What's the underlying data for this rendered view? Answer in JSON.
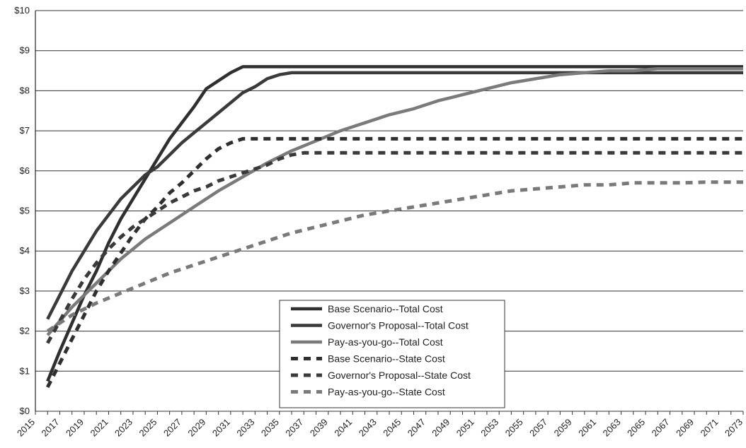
{
  "chart_data": {
    "type": "line",
    "title": "",
    "xlabel": "",
    "ylabel": "",
    "ylim": [
      0,
      10
    ],
    "xlim": [
      2015,
      2073
    ],
    "y_ticks": [
      0,
      1,
      2,
      3,
      4,
      5,
      6,
      7,
      8,
      9,
      10
    ],
    "y_tick_labels": [
      "$0",
      "$1",
      "$2",
      "$3",
      "$4",
      "$5",
      "$6",
      "$7",
      "$8",
      "$9",
      "$10"
    ],
    "x_ticks": [
      2015,
      2017,
      2019,
      2021,
      2023,
      2025,
      2027,
      2029,
      2031,
      2033,
      2035,
      2037,
      2039,
      2041,
      2043,
      2045,
      2047,
      2049,
      2051,
      2053,
      2055,
      2057,
      2059,
      2061,
      2063,
      2065,
      2067,
      2069,
      2071,
      2073
    ],
    "x_tick_labels": [
      "2015",
      "2017",
      "2019",
      "2021",
      "2023",
      "2025",
      "2027",
      "2029",
      "2031",
      "2033",
      "2035",
      "2037",
      "2039",
      "2041",
      "2043",
      "2045",
      "2047",
      "2049",
      "2051",
      "2053",
      "2055",
      "2057",
      "2059",
      "2061",
      "2063",
      "2065",
      "2067",
      "2069",
      "2071",
      "2073"
    ],
    "grid": "horizontal",
    "legend_position": "bottom-center",
    "series": [
      {
        "name": "Base Scenario--Total Cost",
        "style": "solid",
        "color": "#2f2f2f",
        "x": [
          2016,
          2017,
          2018,
          2019,
          2020,
          2021,
          2022,
          2023,
          2024,
          2025,
          2026,
          2027,
          2028,
          2029,
          2030,
          2031,
          2032,
          2033,
          2073
        ],
        "y": [
          0.75,
          1.5,
          2.2,
          2.9,
          3.5,
          4.2,
          4.8,
          5.3,
          5.8,
          6.3,
          6.8,
          7.2,
          7.6,
          8.05,
          8.25,
          8.45,
          8.6,
          8.6,
          8.6
        ]
      },
      {
        "name": "Governor's Proposal--Total Cost",
        "style": "solid",
        "color": "#3a3a3a",
        "x": [
          2016,
          2017,
          2018,
          2019,
          2020,
          2021,
          2022,
          2023,
          2024,
          2025,
          2026,
          2027,
          2028,
          2029,
          2030,
          2031,
          2032,
          2033,
          2034,
          2035,
          2036,
          2037,
          2073
        ],
        "y": [
          2.3,
          2.9,
          3.5,
          4.0,
          4.5,
          4.9,
          5.3,
          5.6,
          5.9,
          6.1,
          6.4,
          6.7,
          6.95,
          7.2,
          7.45,
          7.7,
          7.95,
          8.1,
          8.3,
          8.4,
          8.45,
          8.45,
          8.45
        ]
      },
      {
        "name": "Pay-as-you-go--Total Cost",
        "style": "solid",
        "color": "#7a7a7a",
        "x": [
          2016,
          2018,
          2020,
          2022,
          2024,
          2026,
          2028,
          2030,
          2032,
          2034,
          2036,
          2038,
          2040,
          2042,
          2044,
          2046,
          2048,
          2050,
          2052,
          2054,
          2056,
          2058,
          2060,
          2062,
          2064,
          2066,
          2068,
          2070,
          2073
        ],
        "y": [
          1.9,
          2.6,
          3.2,
          3.8,
          4.3,
          4.7,
          5.1,
          5.5,
          5.85,
          6.2,
          6.5,
          6.75,
          7.0,
          7.2,
          7.4,
          7.55,
          7.75,
          7.9,
          8.05,
          8.2,
          8.3,
          8.4,
          8.45,
          8.5,
          8.5,
          8.55,
          8.55,
          8.55,
          8.55
        ]
      },
      {
        "name": "Base Scenario--State Cost",
        "style": "dashed",
        "color": "#2f2f2f",
        "x": [
          2016,
          2017,
          2018,
          2019,
          2020,
          2021,
          2022,
          2023,
          2024,
          2025,
          2026,
          2027,
          2028,
          2029,
          2030,
          2031,
          2032,
          2033,
          2073
        ],
        "y": [
          0.6,
          1.2,
          1.8,
          2.4,
          3.0,
          3.5,
          3.95,
          4.4,
          4.8,
          5.1,
          5.45,
          5.7,
          6.0,
          6.3,
          6.55,
          6.7,
          6.8,
          6.8,
          6.8
        ]
      },
      {
        "name": "Governor's Proposal--State Cost",
        "style": "dashed",
        "color": "#3a3a3a",
        "x": [
          2016,
          2017,
          2018,
          2019,
          2020,
          2021,
          2022,
          2023,
          2024,
          2025,
          2026,
          2027,
          2028,
          2029,
          2030,
          2031,
          2032,
          2033,
          2034,
          2035,
          2036,
          2037,
          2073
        ],
        "y": [
          1.7,
          2.25,
          2.8,
          3.3,
          3.7,
          4.05,
          4.35,
          4.6,
          4.8,
          5.0,
          5.2,
          5.35,
          5.5,
          5.6,
          5.75,
          5.85,
          5.95,
          6.05,
          6.15,
          6.3,
          6.4,
          6.45,
          6.45
        ]
      },
      {
        "name": "Pay-as-you-go--State Cost",
        "style": "dashed",
        "color": "#7a7a7a",
        "x": [
          2016,
          2018,
          2020,
          2022,
          2024,
          2026,
          2028,
          2030,
          2032,
          2034,
          2036,
          2038,
          2040,
          2042,
          2044,
          2046,
          2048,
          2050,
          2052,
          2054,
          2056,
          2058,
          2060,
          2062,
          2064,
          2066,
          2068,
          2070,
          2073
        ],
        "y": [
          2.0,
          2.4,
          2.7,
          2.95,
          3.2,
          3.45,
          3.65,
          3.85,
          4.05,
          4.25,
          4.45,
          4.6,
          4.75,
          4.9,
          5.0,
          5.1,
          5.2,
          5.3,
          5.4,
          5.5,
          5.55,
          5.6,
          5.65,
          5.65,
          5.7,
          5.7,
          5.7,
          5.72,
          5.72
        ]
      }
    ]
  }
}
